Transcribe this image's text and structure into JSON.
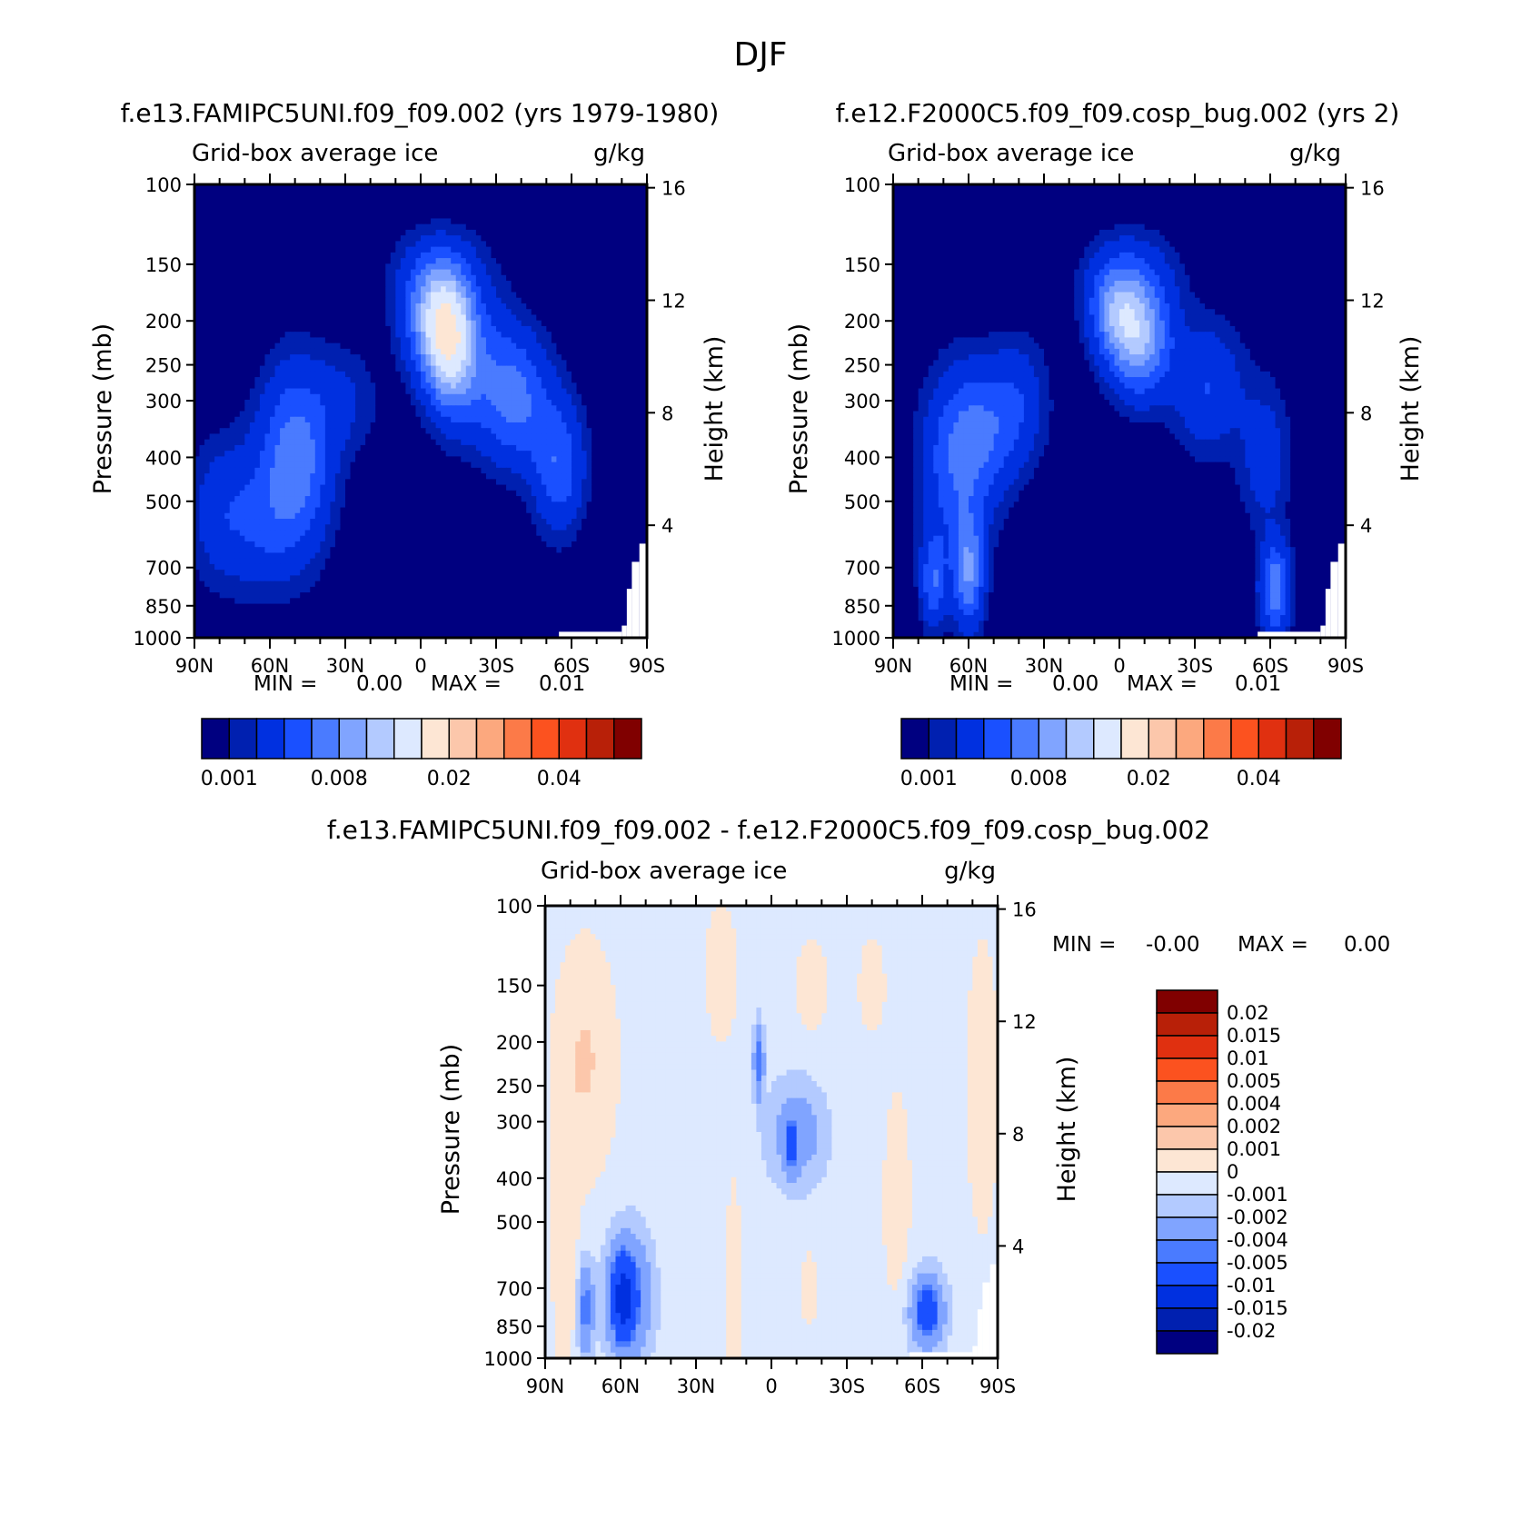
{
  "page": {
    "title": "DJF",
    "colors": {
      "background": "#ffffff",
      "axis": "#000000",
      "missing": "#ffffff"
    }
  },
  "panels": {
    "left": {
      "case_title": "f.e13.FAMIPC5UNI.f09_f09.002 (yrs 1979-1980)",
      "subtitle_left": "Grid-box average ice",
      "subtitle_right": "g/kg",
      "ylabel": "Pressure (mb)",
      "ylabel_right": "Height (km)",
      "min_label": "MIN =",
      "min_value": "0.00",
      "max_label": "MAX =",
      "max_value": "0.01"
    },
    "right": {
      "case_title": "f.e12.F2000C5.f09_f09.cosp_bug.002 (yrs 2)",
      "subtitle_left": "Grid-box average ice",
      "subtitle_right": "g/kg",
      "ylabel": "Pressure (mb)",
      "ylabel_right": "Height (km)",
      "min_label": "MIN =",
      "min_value": "0.00",
      "max_label": "MAX =",
      "max_value": "0.01"
    },
    "diff": {
      "case_title": "f.e13.FAMIPC5UNI.f09_f09.002 - f.e12.F2000C5.f09_f09.cosp_bug.002",
      "subtitle_left": "Grid-box average ice",
      "subtitle_right": "g/kg",
      "ylabel": "Pressure (mb)",
      "ylabel_right": "Height (km)",
      "min_label": "MIN =",
      "min_value": "-0.00",
      "max_label": "MAX =",
      "max_value": "0.00"
    }
  },
  "colorbars": {
    "abs": {
      "colors": [
        "#000080",
        "#0020b0",
        "#0030e0",
        "#1a50ff",
        "#4a7bff",
        "#80a4ff",
        "#b3caff",
        "#dde9ff",
        "#fde6d4",
        "#fcc7ab",
        "#fca87e",
        "#fc7a48",
        "#fc521f",
        "#e03010",
        "#b82008",
        "#800000"
      ],
      "labels": [
        "0.001",
        "0.008",
        "0.02",
        "0.04"
      ]
    },
    "diff": {
      "colors": [
        "#000080",
        "#0020b0",
        "#0030e0",
        "#1a50ff",
        "#4a7bff",
        "#80a4ff",
        "#b3caff",
        "#dde9ff",
        "#fde6d4",
        "#fcc7ab",
        "#fca87e",
        "#fc7a48",
        "#fc521f",
        "#e03010",
        "#b82008",
        "#800000"
      ],
      "labels": [
        "0.02",
        "0.015",
        "0.01",
        "0.005",
        "0.004",
        "0.002",
        "0.001",
        "0",
        "-0.001",
        "-0.002",
        "-0.004",
        "-0.005",
        "-0.01",
        "-0.015",
        "-0.02"
      ]
    }
  },
  "chart_data": [
    {
      "type": "heatmap",
      "title": "f.e13.FAMIPC5UNI.f09_f09.002 (yrs 1979-1980)",
      "variable": "Grid-box average ice",
      "units": "g/kg",
      "xlabel": "",
      "ylabel": "Pressure (mb)",
      "y2label": "Height (km)",
      "xlim": [
        90,
        -90
      ],
      "x_ticks": [
        90,
        60,
        30,
        0,
        -30,
        -60,
        -90
      ],
      "x_tick_labels": [
        "90N",
        "60N",
        "30N",
        "0",
        "30S",
        "60S",
        "90S"
      ],
      "y_scale": "log",
      "ylim": [
        1000,
        100
      ],
      "y_ticks": [
        100,
        150,
        200,
        250,
        300,
        400,
        500,
        700,
        850,
        1000
      ],
      "y_tick_labels": [
        "100",
        "150",
        "200",
        "250",
        "300",
        "400",
        "500",
        "700",
        "850",
        "1000"
      ],
      "y2_ticks_km": [
        16,
        12,
        8,
        4
      ],
      "y2_tick_labels": [
        "16",
        "12",
        "8",
        "4"
      ],
      "min": 0.0,
      "max": 0.01,
      "contour_levels": [
        0.001,
        0.002,
        0.004,
        0.006,
        0.008,
        0.01,
        0.012,
        0.015,
        0.02,
        0.025,
        0.03,
        0.035,
        0.04,
        0.045,
        0.05
      ],
      "features": [
        {
          "lat": 50,
          "p": 410,
          "lat_width": 14,
          "logp_width": 0.2,
          "value": 0.0075
        },
        {
          "lat": 78,
          "p": 530,
          "lat_width": 14,
          "logp_width": 0.16,
          "value": 0.0035
        },
        {
          "lat": 62,
          "p": 580,
          "lat_width": 12,
          "logp_width": 0.14,
          "value": 0.002
        },
        {
          "lat": 30,
          "p": 300,
          "lat_width": 14,
          "logp_width": 0.12,
          "value": 0.002
        },
        {
          "lat": -6,
          "p": 200,
          "lat_width": 12,
          "logp_width": 0.12,
          "value": 0.008
        },
        {
          "lat": -12,
          "p": 230,
          "lat_width": 10,
          "logp_width": 0.14,
          "value": 0.0095
        },
        {
          "lat": -7,
          "p": 160,
          "lat_width": 18,
          "logp_width": 0.1,
          "value": 0.003
        },
        {
          "lat": -38,
          "p": 300,
          "lat_width": 14,
          "logp_width": 0.14,
          "value": 0.0058
        },
        {
          "lat": -55,
          "p": 420,
          "lat_width": 10,
          "logp_width": 0.14,
          "value": 0.0055
        },
        {
          "lat": -24,
          "p": 250,
          "lat_width": 16,
          "logp_width": 0.16,
          "value": 0.003
        }
      ]
    },
    {
      "type": "heatmap",
      "title": "f.e12.F2000C5.f09_f09.cosp_bug.002 (yrs 2)",
      "variable": "Grid-box average ice",
      "units": "g/kg",
      "xlabel": "",
      "ylabel": "Pressure (mb)",
      "y2label": "Height (km)",
      "xlim": [
        90,
        -90
      ],
      "x_ticks": [
        90,
        60,
        30,
        0,
        -30,
        -60,
        -90
      ],
      "x_tick_labels": [
        "90N",
        "60N",
        "30N",
        "0",
        "30S",
        "60S",
        "90S"
      ],
      "y_scale": "log",
      "ylim": [
        1000,
        100
      ],
      "y_ticks": [
        100,
        150,
        200,
        250,
        300,
        400,
        500,
        700,
        850,
        1000
      ],
      "y_tick_labels": [
        "100",
        "150",
        "200",
        "250",
        "300",
        "400",
        "500",
        "700",
        "850",
        "1000"
      ],
      "y2_ticks_km": [
        16,
        12,
        8,
        4
      ],
      "y2_tick_labels": [
        "16",
        "12",
        "8",
        "4"
      ],
      "min": 0.0,
      "max": 0.01,
      "contour_levels": [
        0.001,
        0.002,
        0.004,
        0.006,
        0.008,
        0.01,
        0.012,
        0.015,
        0.02,
        0.025,
        0.03,
        0.035,
        0.04,
        0.045,
        0.05
      ],
      "features": [
        {
          "lat": 65,
          "p": 420,
          "lat_width": 14,
          "logp_width": 0.2,
          "value": 0.005
        },
        {
          "lat": 60,
          "p": 720,
          "lat_width": 6,
          "logp_width": 0.12,
          "value": 0.0075
        },
        {
          "lat": 74,
          "p": 750,
          "lat_width": 5,
          "logp_width": 0.1,
          "value": 0.0055
        },
        {
          "lat": 54,
          "p": 350,
          "lat_width": 14,
          "logp_width": 0.14,
          "value": 0.004
        },
        {
          "lat": 40,
          "p": 300,
          "lat_width": 12,
          "logp_width": 0.14,
          "value": 0.003
        },
        {
          "lat": -8,
          "p": 220,
          "lat_width": 12,
          "logp_width": 0.12,
          "value": 0.0095
        },
        {
          "lat": 2,
          "p": 190,
          "lat_width": 10,
          "logp_width": 0.1,
          "value": 0.006
        },
        {
          "lat": -5,
          "p": 160,
          "lat_width": 18,
          "logp_width": 0.1,
          "value": 0.003
        },
        {
          "lat": -35,
          "p": 280,
          "lat_width": 14,
          "logp_width": 0.14,
          "value": 0.004
        },
        {
          "lat": -62,
          "p": 780,
          "lat_width": 6,
          "logp_width": 0.1,
          "value": 0.0075
        },
        {
          "lat": -58,
          "p": 400,
          "lat_width": 10,
          "logp_width": 0.16,
          "value": 0.003
        }
      ]
    },
    {
      "type": "heatmap",
      "title": "f.e13.FAMIPC5UNI.f09_f09.002 - f.e12.F2000C5.f09_f09.cosp_bug.002",
      "variable": "Grid-box average ice",
      "units": "g/kg",
      "xlabel": "",
      "ylabel": "Pressure (mb)",
      "y2label": "Height (km)",
      "xlim": [
        90,
        -90
      ],
      "x_ticks": [
        90,
        60,
        30,
        0,
        -30,
        -60,
        -90
      ],
      "x_tick_labels": [
        "90N",
        "60N",
        "30N",
        "0",
        "30S",
        "60S",
        "90S"
      ],
      "y_scale": "log",
      "ylim": [
        1000,
        100
      ],
      "y_ticks": [
        100,
        150,
        200,
        250,
        300,
        400,
        500,
        700,
        850,
        1000
      ],
      "y_tick_labels": [
        "100",
        "150",
        "200",
        "250",
        "300",
        "400",
        "500",
        "700",
        "850",
        "1000"
      ],
      "y2_ticks_km": [
        16,
        12,
        8,
        4
      ],
      "y2_tick_labels": [
        "16",
        "12",
        "8",
        "4"
      ],
      "min": -0.0,
      "max": 0.0,
      "contour_levels": [
        -0.02,
        -0.015,
        -0.01,
        -0.005,
        -0.004,
        -0.002,
        -0.001,
        0,
        0.001,
        0.002,
        0.004,
        0.005,
        0.01,
        0.015,
        0.02
      ],
      "features": [
        {
          "lat": 74,
          "p": 220,
          "lat_width": 12,
          "logp_width": 0.25,
          "value": 0.0015
        },
        {
          "lat": 82,
          "p": 600,
          "lat_width": 5,
          "logp_width": 0.3,
          "value": 0.0012
        },
        {
          "lat": 20,
          "p": 140,
          "lat_width": 6,
          "logp_width": 0.15,
          "value": 0.0012
        },
        {
          "lat": -16,
          "p": 150,
          "lat_width": 6,
          "logp_width": 0.1,
          "value": 0.0012
        },
        {
          "lat": -40,
          "p": 150,
          "lat_width": 5,
          "logp_width": 0.1,
          "value": 0.0012
        },
        {
          "lat": -50,
          "p": 450,
          "lat_width": 5,
          "logp_width": 0.22,
          "value": 0.0013
        },
        {
          "lat": -84,
          "p": 250,
          "lat_width": 6,
          "logp_width": 0.3,
          "value": 0.0013
        },
        {
          "lat": 15,
          "p": 800,
          "lat_width": 3,
          "logp_width": 0.3,
          "value": 0.0012
        },
        {
          "lat": -15,
          "p": 700,
          "lat_width": 3,
          "logp_width": 0.08,
          "value": 0.0012
        },
        {
          "lat": 5,
          "p": 220,
          "lat_width": 2,
          "logp_width": 0.08,
          "value": -0.0045
        },
        {
          "lat": -8,
          "p": 340,
          "lat_width": 2,
          "logp_width": 0.06,
          "value": -0.0045
        },
        {
          "lat": -10,
          "p": 320,
          "lat_width": 12,
          "logp_width": 0.12,
          "value": -0.0025
        },
        {
          "lat": 59,
          "p": 740,
          "lat_width": 4,
          "logp_width": 0.08,
          "value": -0.0095
        },
        {
          "lat": 57,
          "p": 730,
          "lat_width": 9,
          "logp_width": 0.14,
          "value": -0.0045
        },
        {
          "lat": 74,
          "p": 780,
          "lat_width": 3,
          "logp_width": 0.1,
          "value": -0.0045
        },
        {
          "lat": -62,
          "p": 790,
          "lat_width": 5,
          "logp_width": 0.06,
          "value": -0.0045
        },
        {
          "lat": -62,
          "p": 790,
          "lat_width": 8,
          "logp_width": 0.1,
          "value": -0.0025
        }
      ]
    }
  ]
}
